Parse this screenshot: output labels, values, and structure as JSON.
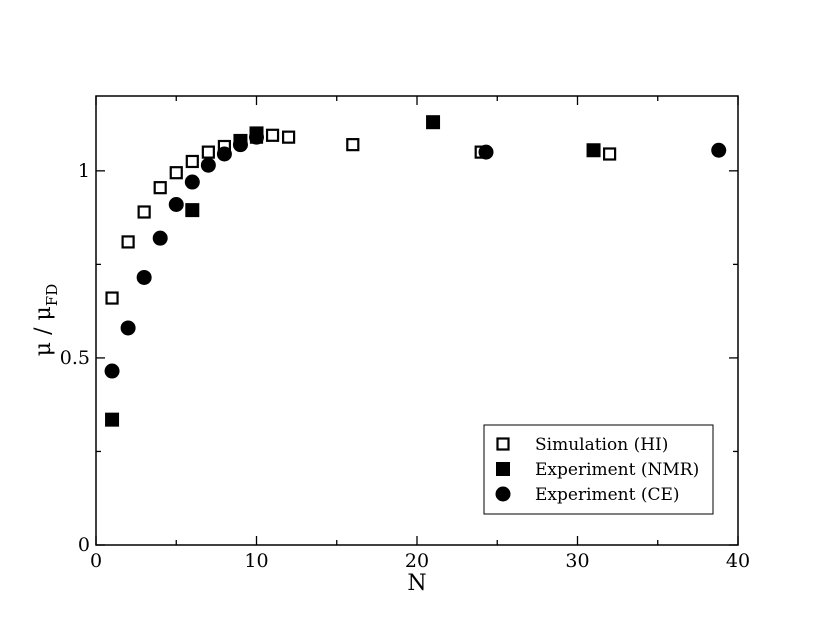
{
  "chart_data": {
    "type": "scatter",
    "xlabel": "N",
    "ylabel_main": "μ / μ",
    "ylabel_sub": "FD",
    "xlim": [
      0,
      40
    ],
    "ylim": [
      0,
      1.2
    ],
    "xticks": [
      0,
      10,
      20,
      30,
      40
    ],
    "yticks": [
      0,
      0.5,
      1
    ],
    "xtick_labels": [
      "0",
      "10",
      "20",
      "30",
      "40"
    ],
    "ytick_labels": [
      "0",
      "0.5",
      "1"
    ],
    "grid": false,
    "legend_position": "bottom-right",
    "series": [
      {
        "name": "Simulation (HI)",
        "marker": "open-square",
        "x": [
          1,
          2,
          3,
          4,
          5,
          6,
          7,
          8,
          9,
          10,
          11,
          12,
          16,
          24,
          32
        ],
        "y": [
          0.66,
          0.81,
          0.89,
          0.955,
          0.995,
          1.025,
          1.05,
          1.065,
          1.08,
          1.09,
          1.095,
          1.09,
          1.07,
          1.05,
          1.045
        ]
      },
      {
        "name": "Experiment (NMR)",
        "marker": "filled-square",
        "x": [
          1,
          6,
          9,
          10,
          21,
          31
        ],
        "y": [
          0.335,
          0.895,
          1.08,
          1.1,
          1.13,
          1.055
        ]
      },
      {
        "name": "Experiment (CE)",
        "marker": "filled-circle",
        "x": [
          1,
          2,
          3,
          4,
          5,
          6,
          7,
          8,
          9,
          10,
          24.3,
          38.8
        ],
        "y": [
          0.465,
          0.58,
          0.715,
          0.82,
          0.91,
          0.97,
          1.015,
          1.045,
          1.07,
          1.09,
          1.05,
          1.055
        ]
      }
    ]
  }
}
